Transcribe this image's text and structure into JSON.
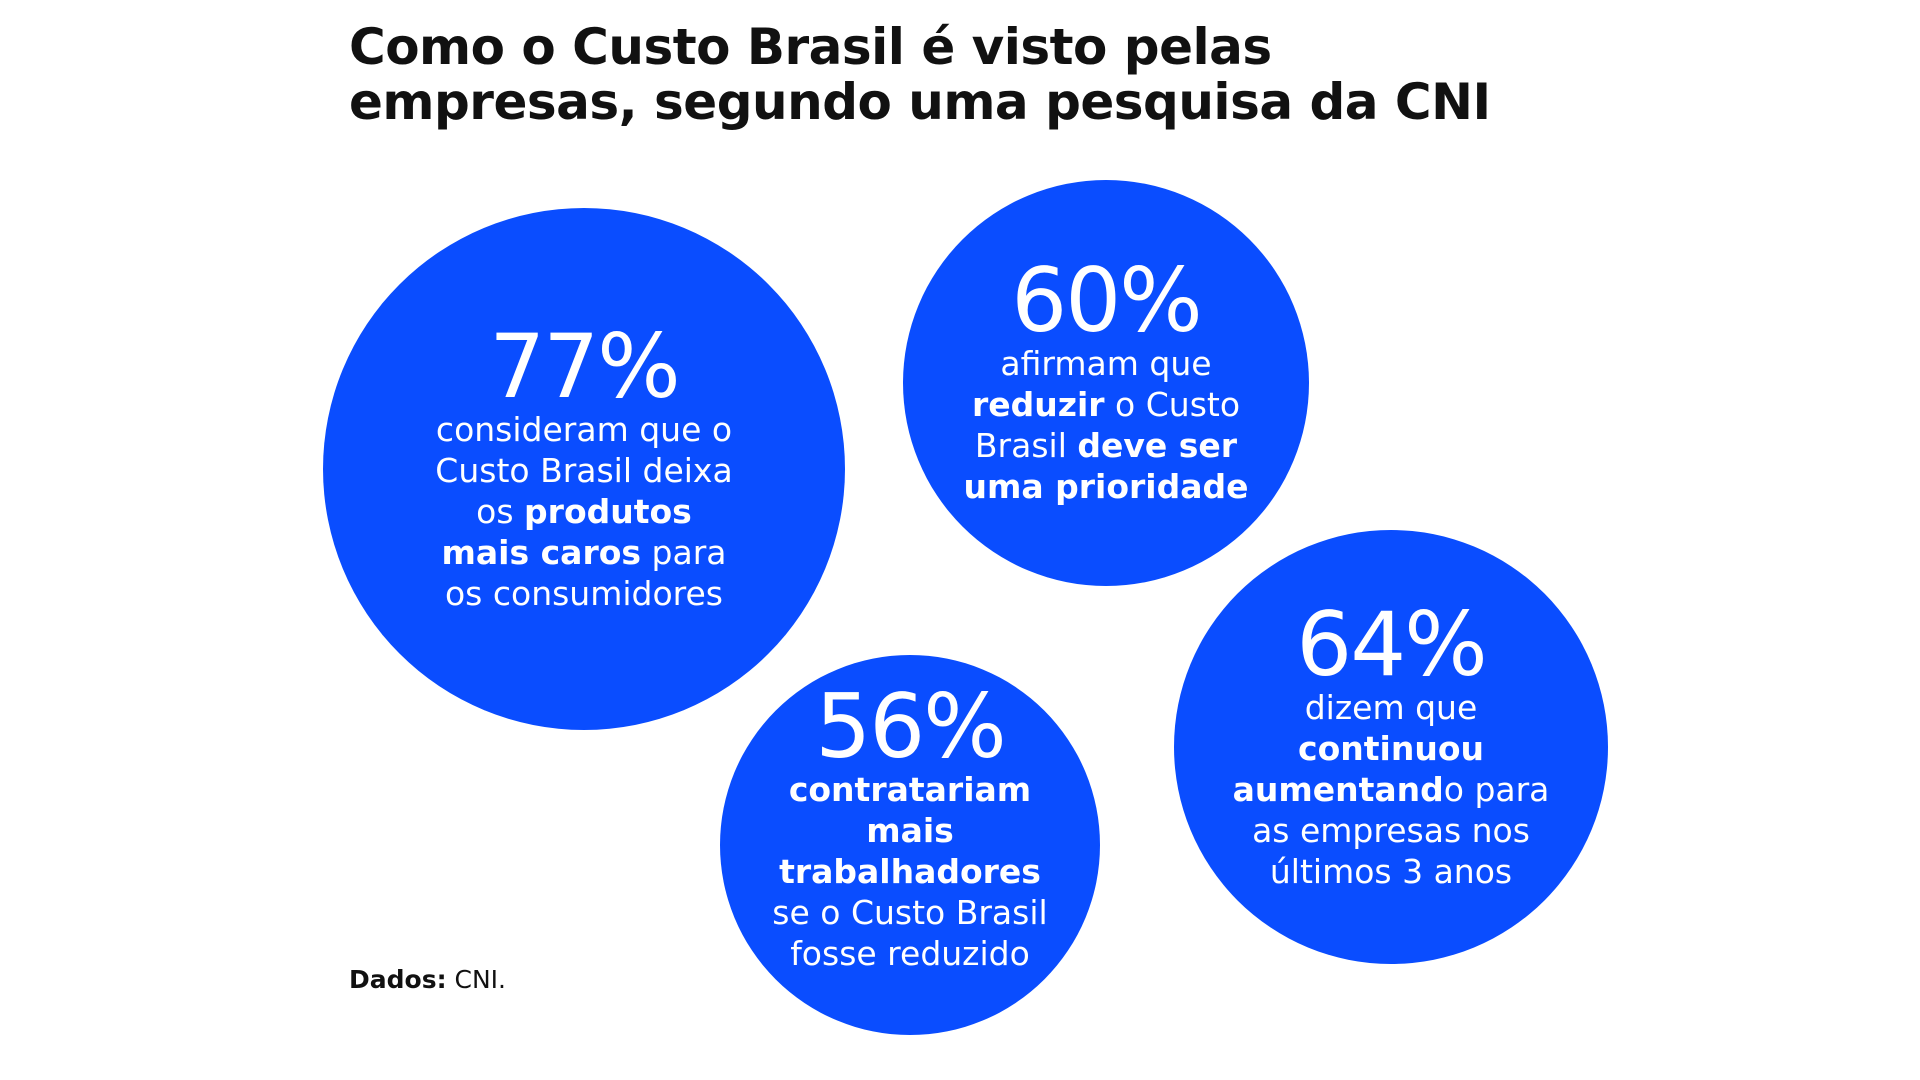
{
  "title": {
    "line1": "Como o Custo Brasil é visto pelas",
    "line2": "empresas, segundo uma pesquisa da CNI"
  },
  "circles": [
    {
      "value": "77%",
      "lines": [
        [
          {
            "text": "consideram que o"
          }
        ],
        [
          {
            "text": "Custo Brasil deixa"
          }
        ],
        [
          {
            "text": "os "
          },
          {
            "text": "produtos"
          }
        ],
        [
          {
            "text": "mais caros"
          },
          {
            "text": " para"
          }
        ],
        [
          {
            "text": "os consumidores"
          }
        ]
      ]
    },
    {
      "value": "60%",
      "lines": [
        [
          {
            "text": "afirmam que"
          }
        ],
        [
          {
            "text": "reduzir"
          },
          {
            "text": " o Custo"
          }
        ],
        [
          {
            "text": "Brasil "
          },
          {
            "text": "deve ser"
          }
        ],
        [
          {
            "text": "uma prioridade"
          }
        ]
      ]
    },
    {
      "value": "56%",
      "lines": [
        [
          {
            "text": "contratariam"
          }
        ],
        [
          {
            "text": "mais"
          }
        ],
        [
          {
            "text": "trabalhadores"
          }
        ],
        [
          {
            "text": "se o Custo Brasil"
          }
        ],
        [
          {
            "text": "fosse reduzido"
          }
        ]
      ]
    },
    {
      "value": "64%",
      "lines": [
        [
          {
            "text": "dizem que"
          }
        ],
        [
          {
            "text": "continuou"
          }
        ],
        [
          {
            "text": "aumentand"
          },
          {
            "text": "o para"
          }
        ],
        [
          {
            "text": "as empresas nos"
          }
        ],
        [
          {
            "text": "últimos 3 anos"
          }
        ]
      ]
    }
  ],
  "source": {
    "label": "Dados:",
    "value": " CNI."
  },
  "colors": {
    "circle": "#0a4dff",
    "text": "#111111"
  }
}
